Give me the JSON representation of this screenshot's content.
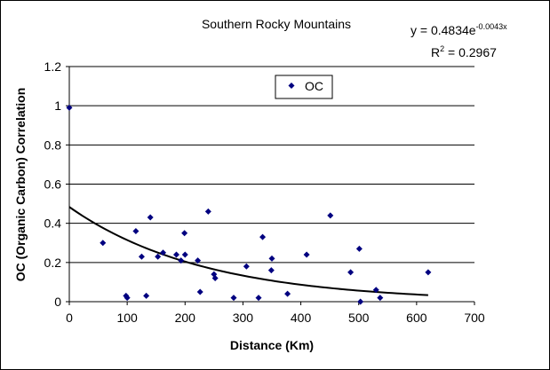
{
  "chart_data": {
    "type": "scatter",
    "title": "Southern Rocky Mountains",
    "xlabel": "Distance (Km)",
    "ylabel": "OC (Organic Carbon) Correlation",
    "xlim": [
      0,
      700
    ],
    "ylim": [
      0,
      1.2
    ],
    "xticks": [
      0,
      100,
      200,
      300,
      400,
      500,
      600,
      700
    ],
    "yticks": [
      0,
      0.2,
      0.4,
      0.6,
      0.8,
      1,
      1.2
    ],
    "xtick_labels": [
      "0",
      "100",
      "200",
      "300",
      "400",
      "500",
      "600",
      "700"
    ],
    "ytick_labels": [
      "0",
      "0.2",
      "0.4",
      "0.6",
      "0.8",
      "1",
      "1.2"
    ],
    "grid": "horizontal major gridlines",
    "legend_position": "top-center inside plot",
    "series": [
      {
        "name": "OC",
        "color": "#000080",
        "marker": "diamond",
        "points": [
          [
            0,
            0.99
          ],
          [
            58,
            0.3
          ],
          [
            98,
            0.03
          ],
          [
            100,
            0.02
          ],
          [
            115,
            0.36
          ],
          [
            125,
            0.23
          ],
          [
            133,
            0.03
          ],
          [
            140,
            0.43
          ],
          [
            153,
            0.23
          ],
          [
            162,
            0.25
          ],
          [
            185,
            0.24
          ],
          [
            193,
            0.21
          ],
          [
            199,
            0.35
          ],
          [
            200,
            0.24
          ],
          [
            222,
            0.21
          ],
          [
            226,
            0.05
          ],
          [
            240,
            0.46
          ],
          [
            250,
            0.14
          ],
          [
            252,
            0.12
          ],
          [
            284,
            0.02
          ],
          [
            306,
            0.18
          ],
          [
            327,
            0.02
          ],
          [
            334,
            0.33
          ],
          [
            349,
            0.16
          ],
          [
            350,
            0.22
          ],
          [
            377,
            0.04
          ],
          [
            410,
            0.24
          ],
          [
            451,
            0.44
          ],
          [
            486,
            0.15
          ],
          [
            501,
            0.27
          ],
          [
            503,
            0.0
          ],
          [
            530,
            0.06
          ],
          [
            537,
            0.02
          ],
          [
            620,
            0.15
          ]
        ]
      }
    ],
    "trendline": {
      "type": "exponential",
      "a": 0.4834,
      "b": -0.0043,
      "x_range": [
        0,
        620
      ],
      "equation_label": "y = 0.4834e",
      "equation_exponent": "-0.0043x",
      "r2_label": "R",
      "r2_sup": "2",
      "r2_value": " = 0.2967"
    },
    "legend": {
      "label": "OC"
    }
  }
}
